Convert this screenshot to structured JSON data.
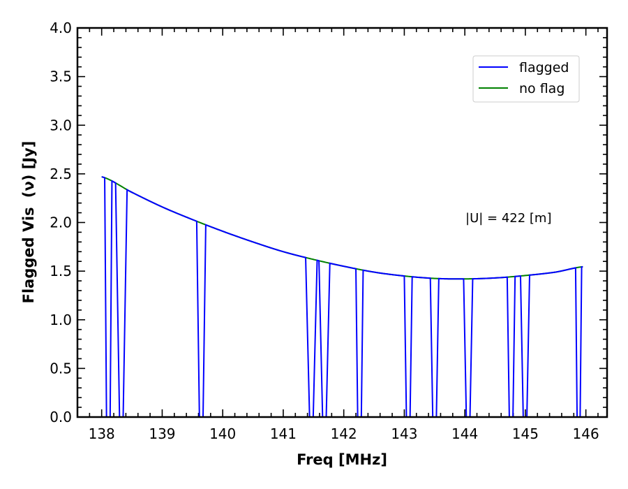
{
  "chart_data": {
    "type": "line",
    "xlabel": "Freq [MHz]",
    "ylabel": "Flagged Vis",
    "ylabel_symbol": "(ν) [Jy]",
    "xlim": [
      137.6,
      146.35
    ],
    "ylim": [
      0.0,
      4.0
    ],
    "x_ticks": [
      "138",
      "139",
      "140",
      "141",
      "142",
      "143",
      "144",
      "145",
      "146"
    ],
    "y_ticks": [
      "0.0",
      "0.5",
      "1.0",
      "1.5",
      "2.0",
      "2.5",
      "3.0",
      "3.5",
      "4.0"
    ],
    "legend_position": "upper-right",
    "annotation": "|U| = 422 [m]",
    "curve": {
      "x": [
        138.0,
        138.5,
        139.0,
        139.5,
        140.0,
        140.5,
        141.0,
        141.5,
        142.0,
        142.5,
        143.0,
        143.5,
        144.0,
        144.5,
        145.0,
        145.5,
        145.95
      ],
      "y": [
        2.47,
        2.31,
        2.16,
        2.03,
        1.91,
        1.8,
        1.7,
        1.62,
        1.55,
        1.49,
        1.45,
        1.425,
        1.42,
        1.43,
        1.455,
        1.49,
        1.545
      ]
    },
    "flag_gaps": [
      [
        138.05,
        138.17
      ],
      [
        138.23,
        138.42
      ],
      [
        139.57,
        139.72
      ],
      [
        141.37,
        141.56
      ],
      [
        141.59,
        141.77
      ],
      [
        142.2,
        142.32
      ],
      [
        143.0,
        143.13
      ],
      [
        143.43,
        143.57
      ],
      [
        143.98,
        144.13
      ],
      [
        144.7,
        144.83
      ],
      [
        144.92,
        145.07
      ],
      [
        145.83,
        145.93
      ]
    ],
    "series": [
      {
        "name": "flagged",
        "color": "#0000ff"
      },
      {
        "name": "no flag",
        "color": "#008000"
      }
    ]
  }
}
